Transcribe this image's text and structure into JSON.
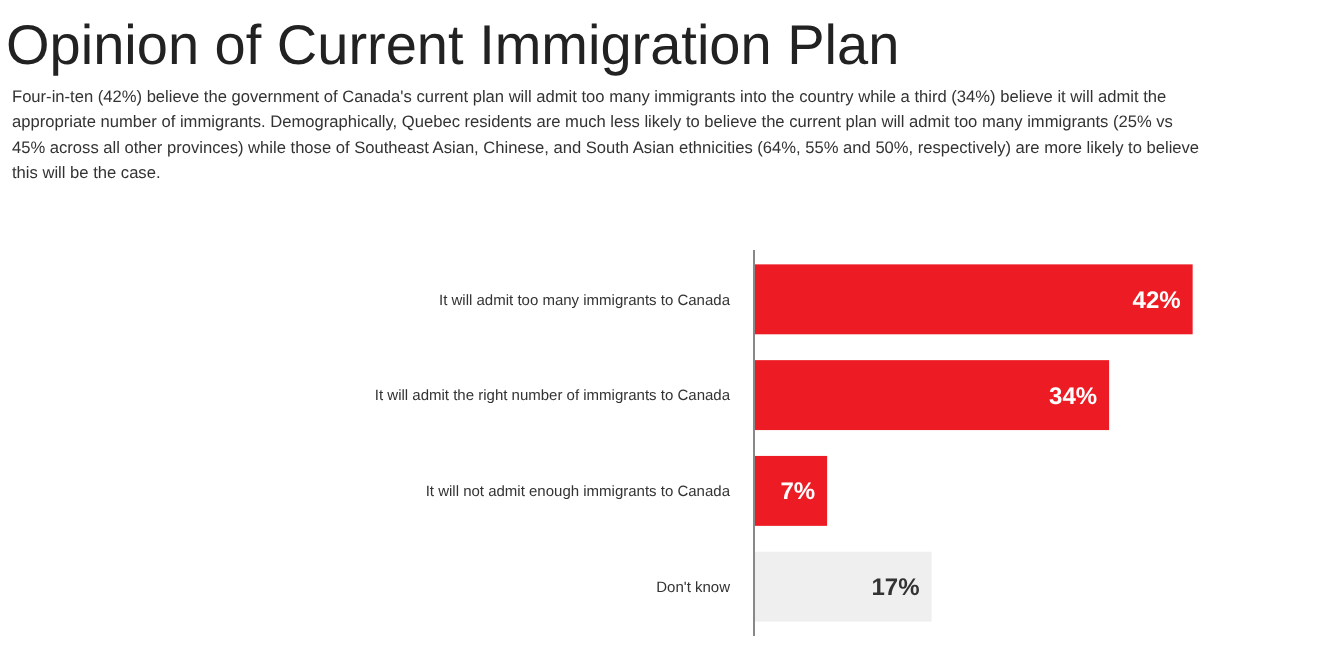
{
  "chart_data": {
    "type": "bar",
    "orientation": "horizontal",
    "title": "Opinion of Current Immigration Plan",
    "subtitle": "Four-in-ten (42%) believe the government of Canada's current plan will admit too many immigrants into the country while a third (34%) believe it will admit the appropriate number of immigrants. Demographically, Quebec residents are much less likely to believe the current plan will admit too many immigrants (25% vs 45% across all other provinces) while those of Southeast Asian, Chinese, and South Asian ethnicities (64%, 55% and 50%, respectively) are more likely to believe this will be the case.",
    "categories": [
      "It will admit too many immigrants to Canada",
      "It will admit the right number of immigrants to Canada",
      "It will not admit enough immigrants to Canada",
      "Don't know"
    ],
    "values": [
      42,
      34,
      7,
      17
    ],
    "colors": [
      "#ed1c24",
      "#ed1c24",
      "#ed1c24",
      "#efefef"
    ],
    "value_labels": [
      "42%",
      "34%",
      "7%",
      "17%"
    ]
  }
}
